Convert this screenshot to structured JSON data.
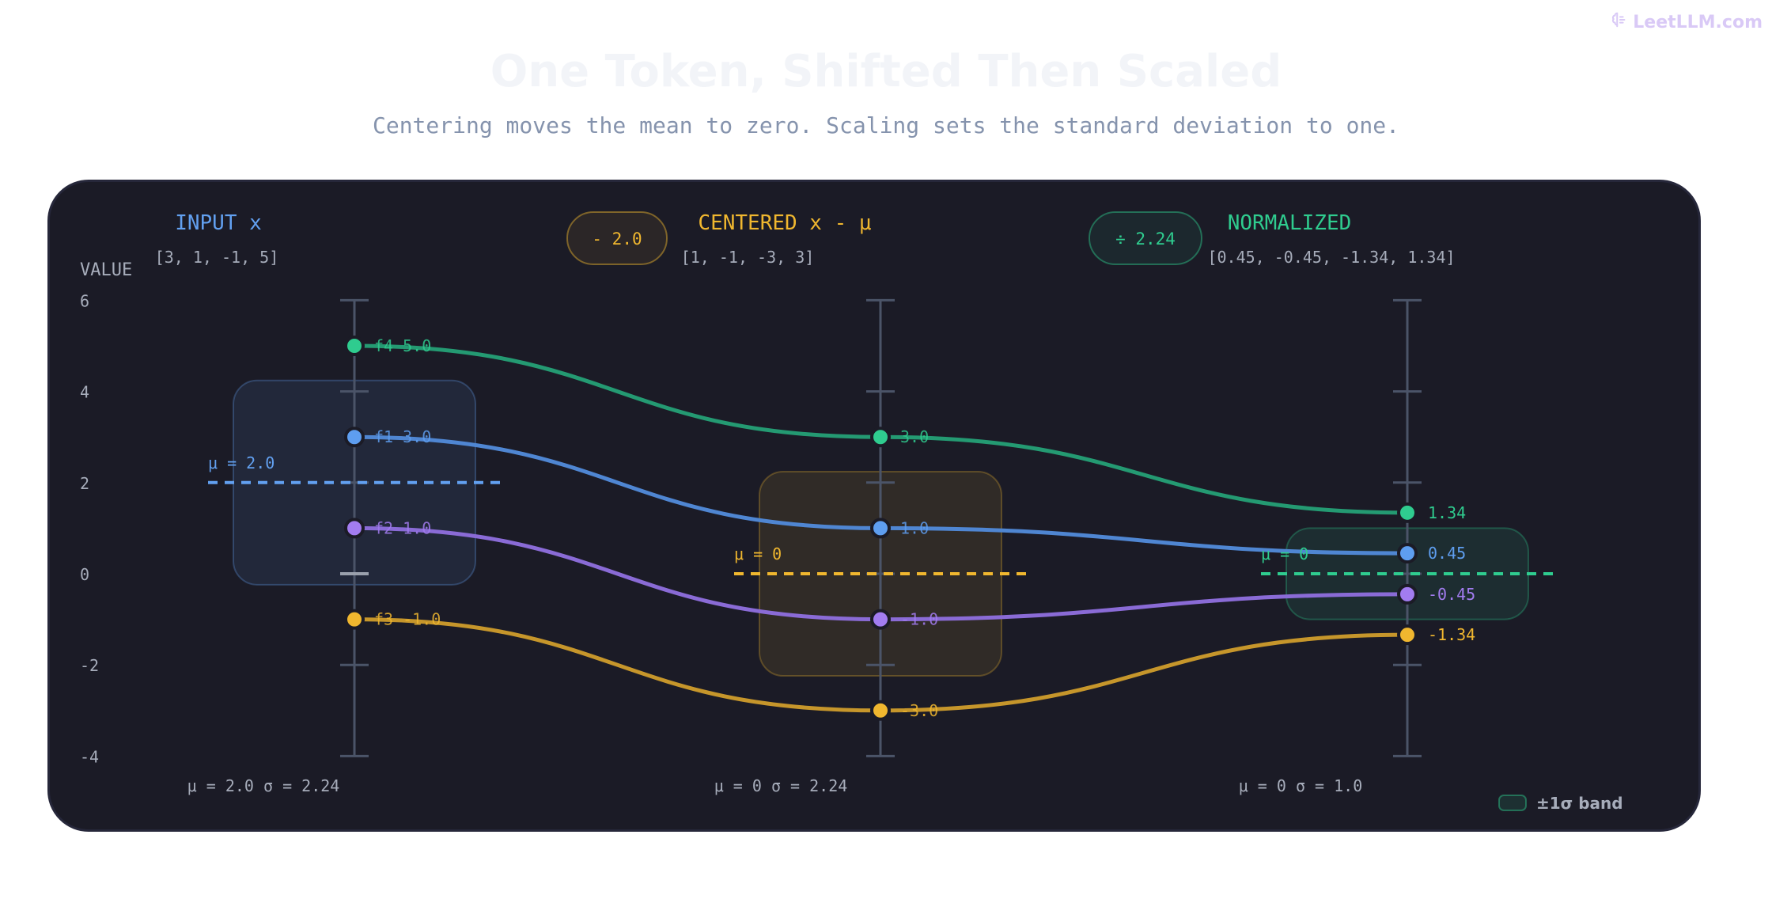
{
  "brand": {
    "name": "LeetLLM.com",
    "icon": "brain-icon"
  },
  "title": "One Token, Shifted Then Scaled",
  "subtitle": "Centering moves the mean to zero. Scaling sets the standard deviation to one.",
  "axis": {
    "label": "VALUE",
    "ticks": [
      "6",
      "4",
      "2",
      "0",
      "-2",
      "-4"
    ]
  },
  "stages": [
    {
      "name": "INPUT x",
      "vector": "[3, 1, -1, 5]",
      "stats": "μ = 2.0 σ = 2.24",
      "mean_label": "μ = 2.0",
      "color": "#62a0f0",
      "operator": ""
    },
    {
      "name": "CENTERED x - μ",
      "vector": "[1, -1, -3, 3]",
      "stats": "μ = 0 σ = 2.24",
      "mean_label": "μ = 0",
      "color": "#f0b72f",
      "operator": "- 2.0"
    },
    {
      "name": "NORMALIZED",
      "vector": "[0.45, -0.45, -1.34, 1.34]",
      "stats": "μ = 0 σ = 1.0",
      "mean_label": "μ = 0",
      "color": "#2fcc8f",
      "operator": "÷ 2.24"
    }
  ],
  "features": [
    {
      "id": "f1",
      "color": "#5e9ef0",
      "line": "#4f86d2",
      "values": [
        3,
        1,
        0.45
      ],
      "labels": [
        "f1 3.0",
        "1.0",
        "0.45"
      ]
    },
    {
      "id": "f2",
      "color": "#a27cf0",
      "line": "#8a6bd6",
      "values": [
        1,
        -1,
        -0.45
      ],
      "labels": [
        "f2 1.0",
        "-1.0",
        "-0.45"
      ]
    },
    {
      "id": "f3",
      "color": "#f0b72f",
      "line": "#c6962b",
      "values": [
        -1,
        -3,
        -1.34
      ],
      "labels": [
        "f3 -1.0",
        "-3.0",
        "-1.34"
      ]
    },
    {
      "id": "f4",
      "color": "#2fcc8f",
      "line": "#249a72",
      "values": [
        5,
        3,
        1.34
      ],
      "labels": [
        "f4 5.0",
        "3.0",
        "1.34"
      ]
    }
  ],
  "legend": {
    "label": "±1σ band"
  }
}
